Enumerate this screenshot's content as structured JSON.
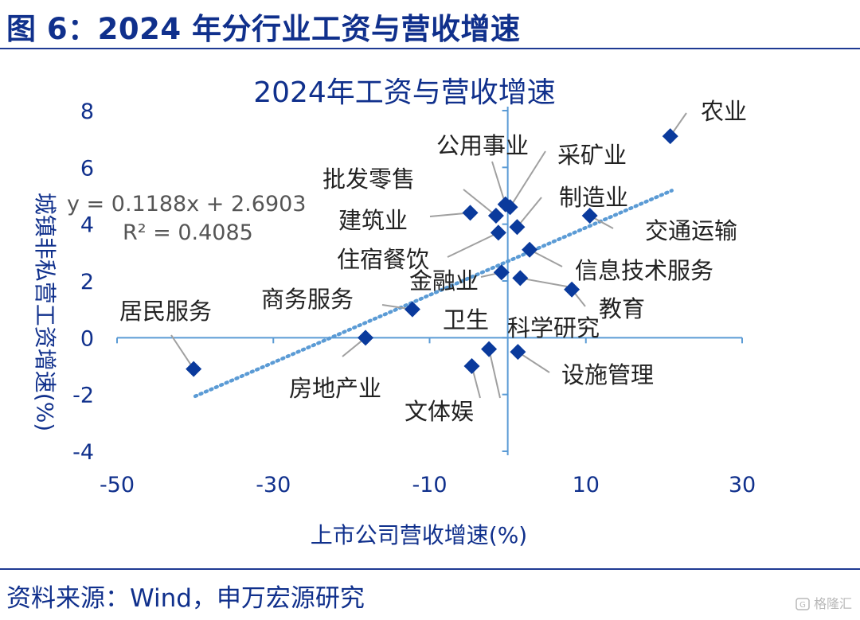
{
  "figure_title": "图 6：2024 年分行业工资与营收增速",
  "source": "资料来源：Wind，申万宏源研究",
  "watermark": "格隆汇",
  "colors": {
    "primary": "#10308c",
    "marker": "#0a3a9c",
    "axis": "#5b9bd5",
    "trend": "#5b9bd5",
    "leader": "#a0a0a0",
    "label": "#222222"
  },
  "chart_data": {
    "type": "scatter",
    "title": "2024年工资与营收增速",
    "xlabel": "上市公司营收增速(%)",
    "ylabel": "城镇非私营工资增速(%)",
    "xlim": [
      -50,
      30
    ],
    "ylim": [
      -4,
      8
    ],
    "xticks": [
      -50,
      -30,
      -10,
      10,
      30
    ],
    "xtick_labels": [
      "-50",
      "-30",
      "-10",
      "10",
      "30"
    ],
    "yticks": [
      -4,
      -2,
      0,
      2,
      4,
      6,
      8
    ],
    "ytick_labels": [
      "-4",
      "-2",
      "0",
      "2",
      "4",
      "6",
      "8"
    ],
    "trendline": {
      "slope": 0.1188,
      "intercept": 2.6903,
      "x_range": [
        -40,
        21
      ],
      "equation": "y = 0.1188x + 2.6903",
      "r2": "R² = 0.4085",
      "style": "dotted"
    },
    "points": [
      {
        "name": "农业",
        "x": 20.8,
        "y": 7.1
      },
      {
        "name": "采矿业",
        "x": 0.3,
        "y": 4.6
      },
      {
        "name": "公用事业",
        "x": -0.3,
        "y": 4.7
      },
      {
        "name": "批发零售",
        "x": -1.5,
        "y": 4.3
      },
      {
        "name": "建筑业",
        "x": -4.8,
        "y": 4.4
      },
      {
        "name": "制造业",
        "x": 1.2,
        "y": 3.9
      },
      {
        "name": "交通运输",
        "x": 10.5,
        "y": 4.3
      },
      {
        "name": "住宿餐饮",
        "x": -1.2,
        "y": 3.7
      },
      {
        "name": "信息技术服务",
        "x": 2.8,
        "y": 3.1
      },
      {
        "name": "金融业",
        "x": -0.8,
        "y": 2.3
      },
      {
        "name": "卫生",
        "x": 1.6,
        "y": 2.1
      },
      {
        "name": "教育",
        "x": 8.2,
        "y": 1.7
      },
      {
        "name": "商务服务",
        "x": -12.2,
        "y": 1.0
      },
      {
        "name": "居民服务",
        "x": -40.2,
        "y": -1.1
      },
      {
        "name": "房地产业",
        "x": -18.2,
        "y": 0.0
      },
      {
        "name": "科学研究",
        "x": -2.4,
        "y": -0.4
      },
      {
        "name": "设施管理",
        "x": 1.3,
        "y": -0.5
      },
      {
        "name": "文体娱",
        "x": -4.6,
        "y": -1.0
      }
    ]
  }
}
